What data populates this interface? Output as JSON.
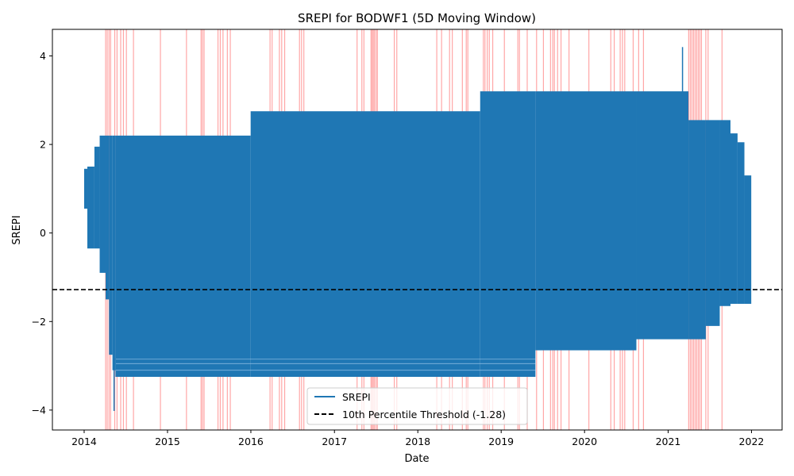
{
  "chart_data": {
    "type": "line",
    "title": "SREPI for BODWF1 (5D Moving Window)",
    "xlabel": "Date",
    "ylabel": "SREPI",
    "xlim": [
      "2013-08-15",
      "2022-05-15"
    ],
    "ylim": [
      -4.45,
      4.6
    ],
    "x_ticks": [
      "2014",
      "2015",
      "2016",
      "2017",
      "2018",
      "2019",
      "2020",
      "2021",
      "2022"
    ],
    "y_ticks": [
      -4,
      -2,
      0,
      2,
      4
    ],
    "y_tick_labels": [
      "−4",
      "−2",
      "0",
      "2",
      "4"
    ],
    "grid": false,
    "legend_position": "bottom-center",
    "colors": {
      "series": "#1f77b4",
      "threshold": "#000000",
      "drought_spans": "#ff0000"
    },
    "series": [
      {
        "name": "SREPI",
        "band_segments": [
          {
            "start": "2014-01-01",
            "end": "2014-01-15",
            "low": 0.55,
            "high": 1.45
          },
          {
            "start": "2014-01-15",
            "end": "2014-02-15",
            "low": -0.35,
            "high": 1.5
          },
          {
            "start": "2014-02-15",
            "end": "2014-03-10",
            "low": -0.35,
            "high": 1.95
          },
          {
            "start": "2014-03-10",
            "end": "2014-04-05",
            "low": -0.9,
            "high": 2.2
          },
          {
            "start": "2014-04-05",
            "end": "2014-04-20",
            "low": -1.5,
            "high": 2.2
          },
          {
            "start": "2014-04-20",
            "end": "2014-05-05",
            "low": -2.75,
            "high": 2.2
          },
          {
            "start": "2014-05-05",
            "end": "2014-05-18",
            "low": -3.1,
            "high": 2.2
          },
          {
            "start": "2014-05-18",
            "end": "2015-12-31",
            "low": -3.25,
            "high": 2.2
          },
          {
            "start": "2015-12-31",
            "end": "2018-10-01",
            "low": -3.25,
            "high": 2.75
          },
          {
            "start": "2018-10-01",
            "end": "2019-05-31",
            "low": -3.25,
            "high": 3.2
          },
          {
            "start": "2019-05-31",
            "end": "2020-08-15",
            "low": -2.65,
            "high": 3.2
          },
          {
            "start": "2020-08-15",
            "end": "2021-03-31",
            "low": -2.4,
            "high": 3.2
          },
          {
            "start": "2021-03-31",
            "end": "2021-06-15",
            "low": -2.4,
            "high": 2.55
          },
          {
            "start": "2021-06-15",
            "end": "2021-08-15",
            "low": -2.1,
            "high": 2.55
          },
          {
            "start": "2021-08-15",
            "end": "2021-10-01",
            "low": -1.65,
            "high": 2.55
          },
          {
            "start": "2021-10-01",
            "end": "2021-11-01",
            "low": -1.6,
            "high": 2.25
          },
          {
            "start": "2021-11-01",
            "end": "2021-12-01",
            "low": -1.6,
            "high": 2.05
          },
          {
            "start": "2021-12-01",
            "end": "2021-12-31",
            "low": -1.6,
            "high": 1.3
          }
        ],
        "min": {
          "x": "2014-05-12",
          "y": -4.02
        },
        "max": {
          "x": "2021-03-05",
          "y": 4.2
        }
      }
    ],
    "threshold": {
      "label": "10th Percentile Threshold (-1.28)",
      "value": -1.28
    },
    "drought_spans": [
      "2014-04-05",
      "2014-04-12",
      "2014-04-20",
      "2014-04-27",
      "2014-05-15",
      "2014-05-25",
      "2014-06-10",
      "2014-06-22",
      "2014-07-05",
      "2014-08-05",
      "2014-12-01",
      "2015-03-25",
      "2015-05-28",
      "2015-06-03",
      "2015-06-10",
      "2015-08-10",
      "2015-08-20",
      "2015-09-01",
      "2015-09-20",
      "2015-10-03",
      "2016-03-25",
      "2016-04-03",
      "2016-05-05",
      "2016-05-15",
      "2016-05-28",
      "2016-08-01",
      "2016-08-10",
      "2016-08-20",
      "2017-04-10",
      "2017-05-01",
      "2017-05-10",
      "2017-06-10",
      "2017-06-15",
      "2017-06-20",
      "2017-06-25",
      "2017-07-02",
      "2017-07-08",
      "2017-09-20",
      "2017-10-01",
      "2018-03-25",
      "2018-04-15",
      "2018-05-20",
      "2018-06-01",
      "2018-07-15",
      "2018-08-01",
      "2018-08-08",
      "2018-10-15",
      "2018-10-22",
      "2018-11-01",
      "2018-11-10",
      "2018-11-25",
      "2019-01-15",
      "2019-03-15",
      "2019-03-22",
      "2019-04-25",
      "2019-06-05",
      "2019-07-05",
      "2019-08-05",
      "2019-08-15",
      "2019-08-22",
      "2019-09-05",
      "2019-09-20",
      "2019-10-25",
      "2020-01-20",
      "2020-04-25",
      "2020-05-10",
      "2020-06-05",
      "2020-06-15",
      "2020-06-25",
      "2020-08-01",
      "2020-08-25",
      "2020-09-15",
      "2021-04-01",
      "2021-04-08",
      "2021-04-15",
      "2021-04-22",
      "2021-04-29",
      "2021-05-06",
      "2021-05-13",
      "2021-05-20",
      "2021-05-27",
      "2021-06-15",
      "2021-06-25",
      "2021-08-25"
    ]
  },
  "legend": {
    "series_label": "SREPI",
    "threshold_label": "10th Percentile Threshold (-1.28)"
  }
}
